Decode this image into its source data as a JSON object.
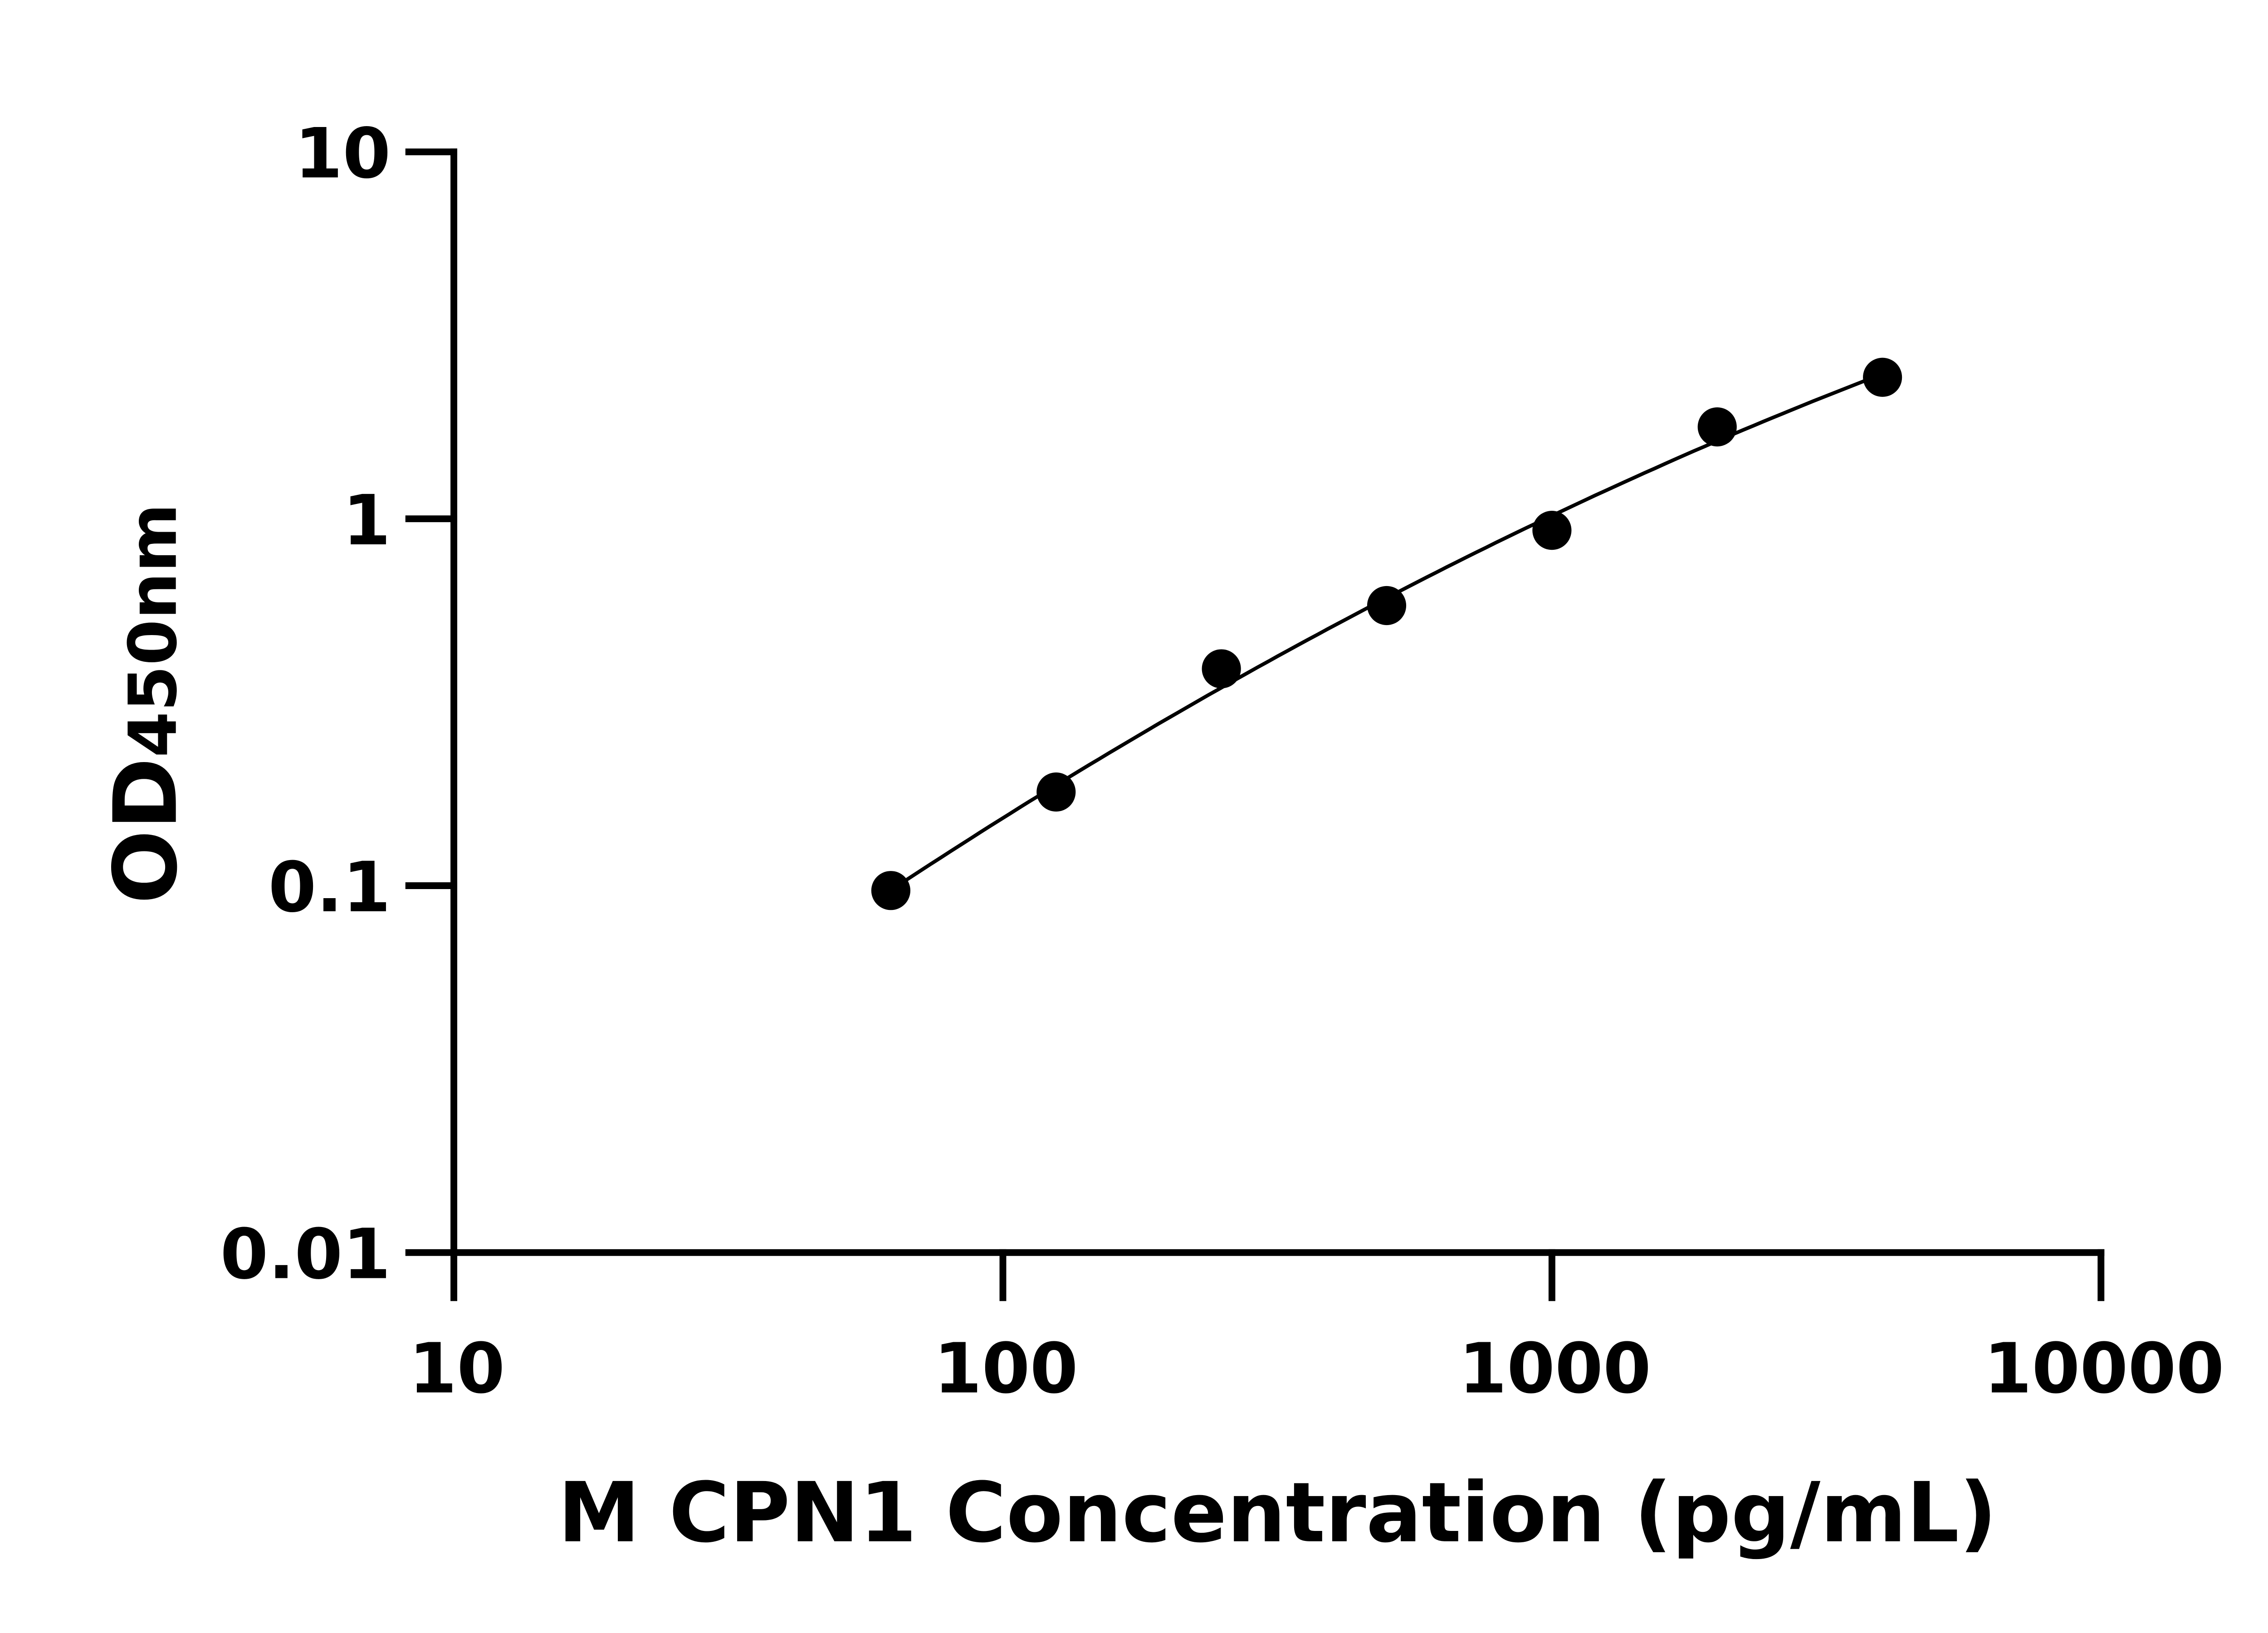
{
  "chart_data": {
    "type": "scatter",
    "title": "",
    "xlabel": "M CPN1 Concentration (pg/mL)",
    "ylabel_main": "OD",
    "ylabel_sub": "450nm",
    "x_scale": "log",
    "y_scale": "log",
    "xlim": [
      10,
      10000
    ],
    "ylim": [
      0.01,
      10
    ],
    "x_ticks": [
      "10",
      "100",
      "1000",
      "10000"
    ],
    "y_ticks": [
      "0.01",
      "0.1",
      "1",
      "10"
    ],
    "grid": false,
    "legend": "none",
    "fit_curve": true,
    "marker_color": "#000000",
    "x": [
      62.5,
      125,
      250,
      500,
      1000,
      2000,
      4000
    ],
    "y": [
      0.097,
      0.18,
      0.39,
      0.58,
      0.93,
      1.78,
      2.43
    ]
  }
}
